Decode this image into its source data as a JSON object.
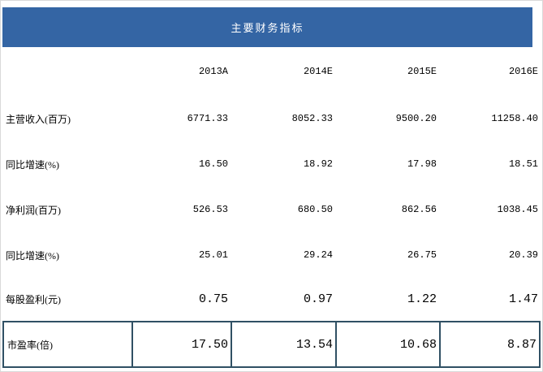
{
  "header": {
    "title": "主要财务指标"
  },
  "table": {
    "columns": [
      "2013A",
      "2014E",
      "2015E",
      "2016E"
    ],
    "rows": [
      {
        "label": "主营收入(百万)",
        "values": [
          "6771.33",
          "8052.33",
          "9500.20",
          "11258.40"
        ]
      },
      {
        "label": "同比增速(%)",
        "values": [
          "16.50",
          "18.92",
          "17.98",
          "18.51"
        ]
      },
      {
        "label": "净利润(百万)",
        "values": [
          "526.53",
          "680.50",
          "862.56",
          "1038.45"
        ]
      },
      {
        "label": "同比增速(%)",
        "values": [
          "25.01",
          "29.24",
          "26.75",
          "20.39"
        ]
      },
      {
        "label": "每股盈利(元)",
        "values": [
          "0.75",
          "0.97",
          "1.22",
          "1.47"
        ]
      },
      {
        "label": "市盈率(倍)",
        "values": [
          "17.50",
          "13.54",
          "10.68",
          "8.87"
        ]
      }
    ]
  },
  "colors": {
    "header_bg": "#3465a4",
    "header_text": "#ffffff",
    "border": "#305064",
    "text": "#000000"
  },
  "chart_data": {
    "type": "table",
    "title": "主要财务指标",
    "categories": [
      "2013A",
      "2014E",
      "2015E",
      "2016E"
    ],
    "series": [
      {
        "name": "主营收入(百万)",
        "values": [
          6771.33,
          8052.33,
          9500.2,
          11258.4
        ]
      },
      {
        "name": "同比增速(%)",
        "values": [
          16.5,
          18.92,
          17.98,
          18.51
        ]
      },
      {
        "name": "净利润(百万)",
        "values": [
          526.53,
          680.5,
          862.56,
          1038.45
        ]
      },
      {
        "name": "同比增速(%)",
        "values": [
          25.01,
          29.24,
          26.75,
          20.39
        ]
      },
      {
        "name": "每股盈利(元)",
        "values": [
          0.75,
          0.97,
          1.22,
          1.47
        ]
      },
      {
        "name": "市盈率(倍)",
        "values": [
          17.5,
          13.54,
          10.68,
          8.87
        ]
      }
    ]
  }
}
